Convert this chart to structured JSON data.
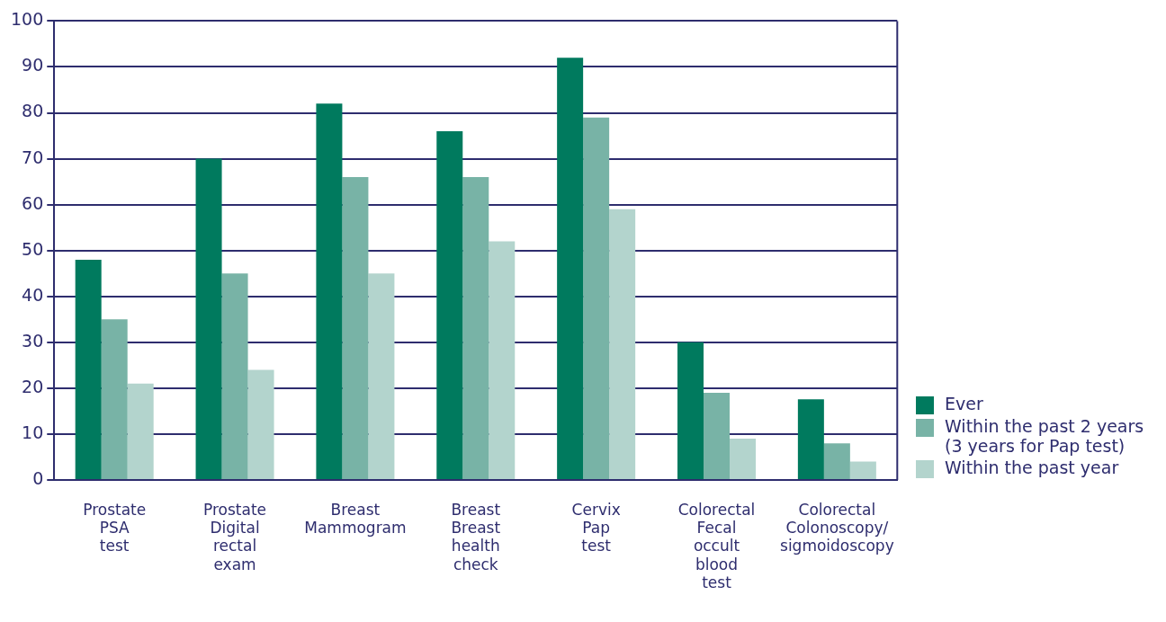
{
  "chart_data": {
    "type": "bar",
    "categories": [
      "Prostate PSA test",
      "Prostate Digital rectal exam",
      "Breast Mammogram",
      "Breast Breast health check",
      "Cervix Pap test",
      "Colorectal Fecal occult blood test",
      "Colorectal Colonoscopy/ sigmoidoscopy"
    ],
    "series": [
      {
        "name": "Ever",
        "color": "#007a5e",
        "values": [
          48,
          70,
          82,
          76,
          92,
          30,
          17.6
        ]
      },
      {
        "name": "Within the past 2 years (3 years for Pap test)",
        "color": "#78b3a6",
        "values": [
          35,
          45,
          66,
          66,
          79,
          19,
          8
        ]
      },
      {
        "name": "Within the past year",
        "color": "#b3d4cd",
        "values": [
          21,
          24,
          45,
          52,
          59,
          9,
          4
        ]
      }
    ],
    "ylim": [
      0,
      100
    ],
    "yticks": [
      0,
      10,
      20,
      30,
      40,
      50,
      60,
      70,
      80,
      90,
      100
    ],
    "grid": "y",
    "legend": "bottom right"
  }
}
